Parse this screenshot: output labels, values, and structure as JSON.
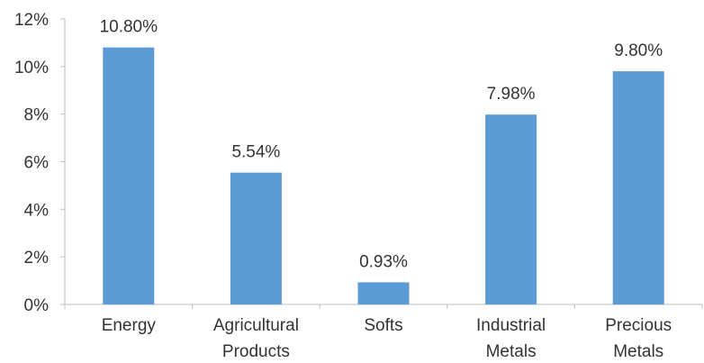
{
  "chart_data": {
    "type": "bar",
    "title": "",
    "xlabel": "",
    "ylabel": "",
    "categories": [
      [
        "Energy"
      ],
      [
        "Agricultural",
        "Products"
      ],
      [
        "Softs"
      ],
      [
        "Industrial",
        "Metals"
      ],
      [
        "Precious",
        "Metals"
      ]
    ],
    "values": [
      10.8,
      5.54,
      0.93,
      7.98,
      9.8
    ],
    "data_labels": [
      "10.80%",
      "5.54%",
      "0.93%",
      "7.98%",
      "9.80%"
    ],
    "ylim": [
      0,
      12
    ],
    "yticks": [
      0,
      2,
      4,
      6,
      8,
      10,
      12
    ],
    "ytick_labels": [
      "0%",
      "2%",
      "4%",
      "6%",
      "8%",
      "10%",
      "12%"
    ],
    "grid": false,
    "legend": "none",
    "bar_color": "#5b9bd5",
    "axis_color": "#bfbfbf",
    "text_color": "#333333"
  }
}
